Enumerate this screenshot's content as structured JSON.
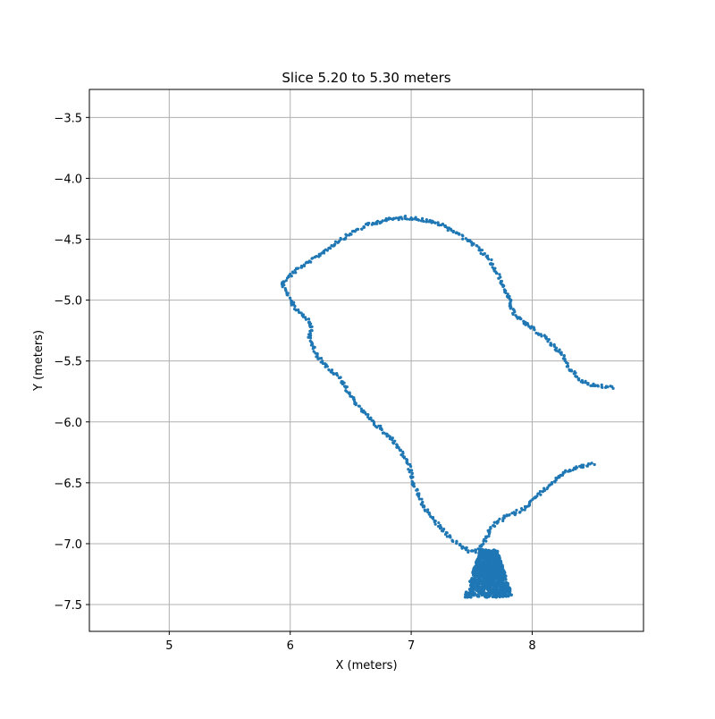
{
  "chart_data": {
    "type": "scatter",
    "title": "Slice 5.20 to 5.30 meters",
    "xlabel": "X (meters)",
    "ylabel": "Y (meters)",
    "xlim": [
      4.34,
      8.92
    ],
    "ylim": [
      -7.72,
      -3.27
    ],
    "x_ticks": [
      5,
      6,
      7,
      8
    ],
    "x_tick_labels": [
      "5",
      "6",
      "7",
      "8"
    ],
    "y_ticks": [
      -3.5,
      -4.0,
      -4.5,
      -5.0,
      -5.5,
      -6.0,
      -6.5,
      -7.0,
      -7.5
    ],
    "y_tick_labels": [
      "−3.5",
      "−4.0",
      "−4.5",
      "−5.0",
      "−5.5",
      "−6.0",
      "−6.5",
      "−7.0",
      "−7.5"
    ],
    "grid": true,
    "point_color": "#1f77b4",
    "series": [
      {
        "segments": [
          [
            [
              5.93,
              -4.86
            ],
            [
              6.05,
              -4.75
            ],
            [
              6.2,
              -4.66
            ],
            [
              6.35,
              -4.55
            ],
            [
              6.5,
              -4.45
            ],
            [
              6.65,
              -4.38
            ],
            [
              6.8,
              -4.34
            ],
            [
              6.95,
              -4.32
            ],
            [
              7.1,
              -4.34
            ],
            [
              7.25,
              -4.38
            ],
            [
              7.4,
              -4.46
            ],
            [
              7.55,
              -4.57
            ],
            [
              7.65,
              -4.67
            ],
            [
              7.72,
              -4.8
            ],
            [
              7.8,
              -4.97
            ],
            [
              7.85,
              -5.12
            ],
            [
              7.95,
              -5.2
            ],
            [
              8.1,
              -5.3
            ],
            [
              8.25,
              -5.45
            ],
            [
              8.3,
              -5.55
            ],
            [
              8.38,
              -5.65
            ],
            [
              8.5,
              -5.7
            ],
            [
              8.67,
              -5.72
            ]
          ],
          [
            [
              5.93,
              -4.86
            ],
            [
              5.97,
              -4.95
            ],
            [
              6.03,
              -5.05
            ],
            [
              6.1,
              -5.12
            ],
            [
              6.18,
              -5.2
            ],
            [
              6.16,
              -5.32
            ],
            [
              6.22,
              -5.45
            ],
            [
              6.3,
              -5.55
            ],
            [
              6.4,
              -5.63
            ],
            [
              6.5,
              -5.78
            ],
            [
              6.6,
              -5.92
            ],
            [
              6.72,
              -6.03
            ],
            [
              6.85,
              -6.15
            ],
            [
              6.92,
              -6.25
            ],
            [
              6.98,
              -6.35
            ],
            [
              7.02,
              -6.5
            ],
            [
              7.1,
              -6.7
            ],
            [
              7.25,
              -6.88
            ],
            [
              7.38,
              -7.0
            ],
            [
              7.5,
              -7.07
            ],
            [
              7.56,
              -7.05
            ],
            [
              7.62,
              -6.95
            ],
            [
              7.68,
              -6.85
            ],
            [
              7.78,
              -6.78
            ],
            [
              7.92,
              -6.72
            ],
            [
              8.05,
              -6.6
            ],
            [
              8.15,
              -6.52
            ],
            [
              8.25,
              -6.42
            ],
            [
              8.35,
              -6.38
            ],
            [
              8.52,
              -6.34
            ]
          ]
        ],
        "cluster": {
          "x_range": [
            7.42,
            7.82
          ],
          "y_range": [
            -7.44,
            -7.05
          ]
        }
      }
    ]
  }
}
